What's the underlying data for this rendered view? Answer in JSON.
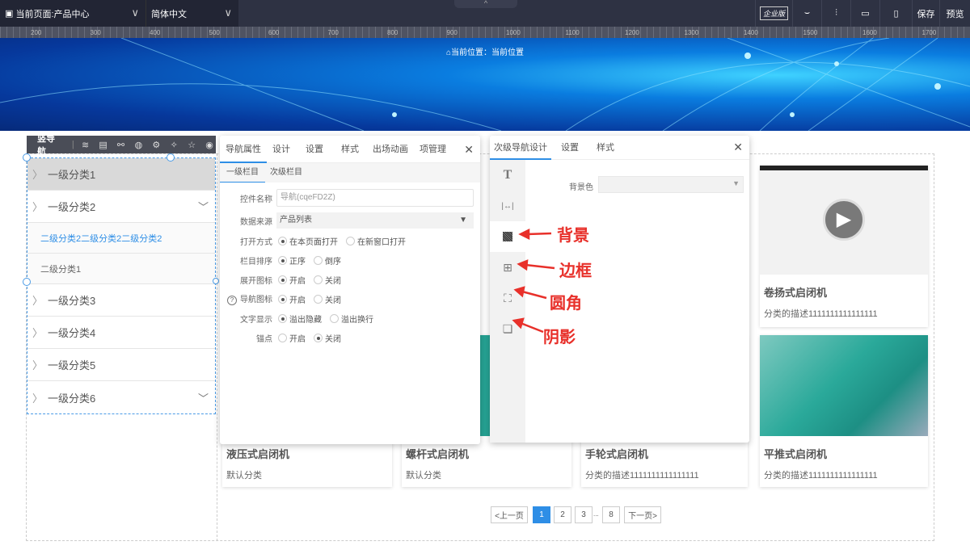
{
  "topbar": {
    "page_select": "当前页面:产品中心",
    "lang_select": "简体中文",
    "edition_badge": "企业版",
    "save": "保存",
    "preview": "预览"
  },
  "ruler": {
    "ticks": [
      "200",
      "300",
      "400",
      "500",
      "600",
      "700",
      "800",
      "900",
      "1000",
      "1100",
      "1200",
      "1300",
      "1400",
      "1500",
      "1600",
      "1700"
    ]
  },
  "banner": {
    "breadcrumb": "当前位置：当前位置"
  },
  "nav_toolbar": {
    "title": "竖导航",
    "icons": [
      "layers-icon",
      "page-icon",
      "link-icon",
      "palette-icon",
      "gear-icon",
      "magic-icon",
      "star-icon",
      "eye-icon"
    ]
  },
  "nav": {
    "items": [
      {
        "label": "一级分类1",
        "active": true
      },
      {
        "label": "一级分类2",
        "expanded": true,
        "children": [
          "二级分类2二级分类2二级分类2",
          "二级分类1"
        ]
      },
      {
        "label": "一级分类3"
      },
      {
        "label": "一级分类4"
      },
      {
        "label": "一级分类5"
      },
      {
        "label": "一级分类6",
        "expandable": true
      }
    ]
  },
  "panel1": {
    "tabs": [
      "导航属性",
      "设计",
      "设置",
      "样式",
      "出场动画",
      "项管理"
    ],
    "subtabs": [
      "一级栏目",
      "次级栏目"
    ],
    "fields": {
      "name_label": "控件名称",
      "name_value": "导航(cqeFD2Z)",
      "source_label": "数据来源",
      "source_value": "产品列表"
    },
    "radios": [
      {
        "label": "打开方式",
        "options": [
          "在本页面打开",
          "在新窗口打开"
        ],
        "selected": 0
      },
      {
        "label": "栏目排序",
        "options": [
          "正序",
          "倒序"
        ],
        "selected": 0
      },
      {
        "label": "展开图标",
        "options": [
          "开启",
          "关闭"
        ],
        "selected": 0
      },
      {
        "label": "导航图标",
        "options": [
          "开启",
          "关闭"
        ],
        "selected": 0,
        "help": true
      },
      {
        "label": "文字显示",
        "options": [
          "溢出隐藏",
          "溢出换行"
        ],
        "selected": 0
      },
      {
        "label": "锚点",
        "options": [
          "开启",
          "关闭"
        ],
        "selected": 1
      }
    ]
  },
  "panel2": {
    "tabs": [
      "次级导航设计",
      "设置",
      "样式"
    ],
    "bg_label": "背景色",
    "side_icons": [
      "text-icon",
      "spacing-icon",
      "background-icon",
      "border-icon",
      "radius-icon",
      "shadow-icon"
    ],
    "annotations": [
      "背景",
      "边框",
      "圆角",
      "阴影"
    ],
    "annotation_color": "#e8302a"
  },
  "products": [
    {
      "title": "液压式启闭机",
      "desc": "默认分类"
    },
    {
      "title": "螺杆式启闭机",
      "desc": "默认分类"
    },
    {
      "title": "手轮式启闭机",
      "desc": "分类的描述1111111111111111"
    },
    {
      "title": "平推式启闭机",
      "desc": "分类的描述1111111111111111"
    },
    {
      "title": "卷扬式启闭机",
      "desc": "分类的描述1111111111111111"
    }
  ],
  "pagination": {
    "prev": "<上一页",
    "pages": [
      "1",
      "2",
      "3",
      "8"
    ],
    "ellipsis": "...",
    "next": "下一页>",
    "current": "1",
    "accent": "#2e8ee6"
  }
}
